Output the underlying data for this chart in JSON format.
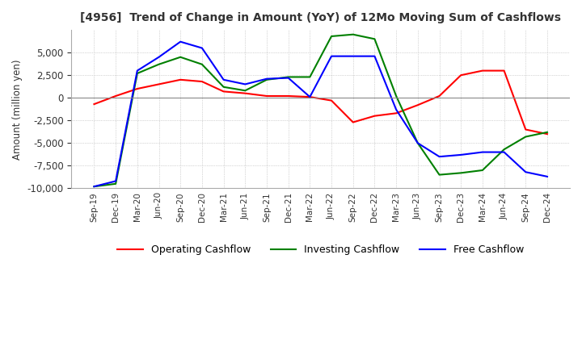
{
  "title": "[4956]  Trend of Change in Amount (YoY) of 12Mo Moving Sum of Cashflows",
  "ylabel": "Amount (million yen)",
  "ylim": [
    -10000,
    7500
  ],
  "yticks": [
    -10000,
    -7500,
    -5000,
    -2500,
    0,
    2500,
    5000
  ],
  "x_labels": [
    "Sep-19",
    "Dec-19",
    "Mar-20",
    "Jun-20",
    "Sep-20",
    "Dec-20",
    "Mar-21",
    "Jun-21",
    "Sep-21",
    "Dec-21",
    "Mar-22",
    "Jun-22",
    "Sep-22",
    "Dec-22",
    "Mar-23",
    "Jun-23",
    "Sep-23",
    "Dec-23",
    "Mar-24",
    "Jun-24",
    "Sep-24",
    "Dec-24"
  ],
  "operating": [
    -700,
    200,
    1000,
    1500,
    2000,
    1800,
    700,
    500,
    200,
    200,
    100,
    -300,
    -2700,
    -2000,
    -1700,
    -800,
    200,
    2500,
    3000,
    3000,
    -3500,
    -4000
  ],
  "investing": [
    -9800,
    -9500,
    2700,
    3700,
    4500,
    3700,
    1200,
    800,
    2000,
    2300,
    2300,
    6800,
    7000,
    6500,
    200,
    -5000,
    -8500,
    -8300,
    -8000,
    -5700,
    -4300,
    -3800
  ],
  "free": [
    -9800,
    -9200,
    3000,
    4500,
    6200,
    5500,
    2000,
    1500,
    2100,
    2200,
    100,
    4600,
    4600,
    4600,
    -1300,
    -5000,
    -6500,
    -6300,
    -6000,
    -6000,
    -8200,
    -8700
  ],
  "operating_color": "#ff0000",
  "investing_color": "#008000",
  "free_color": "#0000ff",
  "background_color": "#ffffff",
  "grid_color": "#b0b0b0"
}
